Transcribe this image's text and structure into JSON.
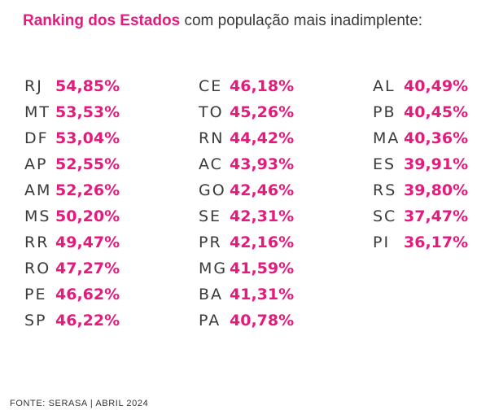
{
  "title": {
    "highlight": "Ranking dos Estados",
    "rest": " com população mais inadimplente:"
  },
  "chart_data": {
    "type": "table",
    "title": "Ranking dos Estados com população mais inadimplente:",
    "unit": "%",
    "columns": [
      [
        {
          "state": "RJ",
          "value": "54,85%"
        },
        {
          "state": "MT",
          "value": "53,53%"
        },
        {
          "state": "DF",
          "value": "53,04%"
        },
        {
          "state": "AP",
          "value": "52,55%"
        },
        {
          "state": "AM",
          "value": "52,26%"
        },
        {
          "state": "MS",
          "value": "50,20%"
        },
        {
          "state": "RR",
          "value": "49,47%"
        },
        {
          "state": "RO",
          "value": "47,27%"
        },
        {
          "state": "PE",
          "value": "46,62%"
        },
        {
          "state": "SP",
          "value": "46,22%"
        }
      ],
      [
        {
          "state": "CE",
          "value": "46,18%"
        },
        {
          "state": "TO",
          "value": "45,26%"
        },
        {
          "state": "RN",
          "value": "44,42%"
        },
        {
          "state": "AC",
          "value": "43,93%"
        },
        {
          "state": "GO",
          "value": "42,46%"
        },
        {
          "state": "SE",
          "value": "42,31%"
        },
        {
          "state": "PR",
          "value": "42,16%"
        },
        {
          "state": "MG",
          "value": "41,59%"
        },
        {
          "state": "BA",
          "value": "41,31%"
        },
        {
          "state": "PA",
          "value": "40,78%"
        }
      ],
      [
        {
          "state": "AL",
          "value": "40,49%"
        },
        {
          "state": "PB",
          "value": "40,45%"
        },
        {
          "state": "MA",
          "value": "40,36%"
        },
        {
          "state": "ES",
          "value": "39,91%"
        },
        {
          "state": "RS",
          "value": "39,80%"
        },
        {
          "state": "SC",
          "value": "37,47%"
        },
        {
          "state": "PI",
          "value": "36,17%"
        }
      ]
    ]
  },
  "source": "FONTE: SERASA | ABRIL 2024",
  "colors": {
    "accent": "#e6197d",
    "text": "#3a3a3a"
  }
}
